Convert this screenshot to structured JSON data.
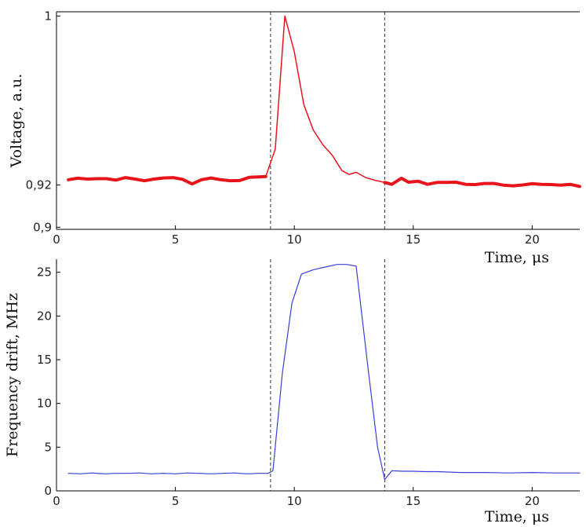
{
  "chart_data": [
    {
      "type": "line",
      "ylabel": "Voltage, a.u.",
      "xlabel": "Time, μs",
      "xlim": [
        0,
        22
      ],
      "ylim": [
        0.899,
        1.002
      ],
      "yticks": [
        0.9,
        0.92,
        1
      ],
      "ytick_labels": [
        "0,9",
        "0,92",
        "1"
      ],
      "xticks": [
        0,
        5,
        10,
        15,
        20
      ],
      "xtick_labels": [
        "0",
        "5",
        "10",
        "15",
        "20"
      ],
      "markers": [
        9.0,
        13.8
      ],
      "grid": false,
      "series": [
        {
          "color": "#e8141c",
          "segments": [
            {
              "x": [
                0.5,
                0.9,
                1.3,
                1.7,
                2.1,
                2.5,
                2.9,
                3.3,
                3.7,
                4.1,
                4.5,
                4.9,
                5.3,
                5.7,
                6.1,
                6.5,
                6.9,
                7.3,
                7.7,
                8.1,
                8.5,
                8.8
              ],
              "y": [
                0.9225,
                0.9232,
                0.9228,
                0.923,
                0.923,
                0.9223,
                0.9235,
                0.9228,
                0.922,
                0.9228,
                0.9233,
                0.9235,
                0.9227,
                0.9205,
                0.9225,
                0.9233,
                0.9225,
                0.922,
                0.9221,
                0.9236,
                0.9238,
                0.924
              ],
              "width": 4
            },
            {
              "x": [
                8.8,
                9.2,
                9.6,
                10.0,
                10.4,
                10.8,
                11.2,
                11.6,
                12.0,
                12.3,
                12.6,
                13.0,
                13.4,
                13.8
              ],
              "y": [
                0.924,
                0.937,
                1.0,
                0.983,
                0.958,
                0.946,
                0.939,
                0.934,
                0.9268,
                0.925,
                0.926,
                0.9235,
                0.9222,
                0.9212
              ],
              "width": 1.5
            },
            {
              "x": [
                13.8,
                14.1,
                14.5,
                14.8,
                15.2,
                15.6,
                16.0,
                16.4,
                16.8,
                17.2,
                17.6,
                18.0,
                18.4,
                18.8,
                19.2,
                19.6,
                20.0,
                20.4,
                20.8,
                21.2,
                21.6,
                22.0
              ],
              "y": [
                0.9212,
                0.9203,
                0.9232,
                0.9213,
                0.9218,
                0.9203,
                0.9212,
                0.9212,
                0.9213,
                0.9203,
                0.9202,
                0.9207,
                0.9207,
                0.9199,
                0.9196,
                0.92,
                0.9206,
                0.9203,
                0.9202,
                0.9199,
                0.9203,
                0.9193
              ],
              "width": 4
            }
          ]
        }
      ]
    },
    {
      "type": "line",
      "ylabel": "Frequency drift, MHz",
      "xlabel": "Time, μs",
      "xlim": [
        0,
        22
      ],
      "ylim": [
        0,
        26.5
      ],
      "yticks": [
        0,
        5,
        10,
        15,
        20,
        25
      ],
      "ytick_labels": [
        "0",
        "5",
        "10",
        "15",
        "20",
        "25"
      ],
      "xticks": [
        0,
        5,
        10,
        15,
        20
      ],
      "xtick_labels": [
        "0",
        "5",
        "10",
        "15",
        "20"
      ],
      "markers": [
        9.0,
        13.8
      ],
      "grid": false,
      "series": [
        {
          "color": "#3a3fd6",
          "segments": [
            {
              "x": [
                0.5,
                1.0,
                1.5,
                2.0,
                2.5,
                3.0,
                3.5,
                4.0,
                4.5,
                5.0,
                5.5,
                6.0,
                6.5,
                7.0,
                7.5,
                8.0,
                8.5,
                8.9,
                9.1,
                9.5,
                9.9,
                10.3,
                10.8,
                11.3,
                11.8,
                12.2,
                12.6,
                13.1,
                13.5,
                13.8,
                14.1,
                14.6,
                15.0,
                15.5,
                16.0,
                17.0,
                18.0,
                19.0,
                20.0,
                21.0,
                22.0
              ],
              "y": [
                2.0,
                1.95,
                2.05,
                1.95,
                2.0,
                2.0,
                2.05,
                1.95,
                2.0,
                1.95,
                2.05,
                2.0,
                1.95,
                2.0,
                2.05,
                1.95,
                2.0,
                2.0,
                2.3,
                13.5,
                21.5,
                24.8,
                25.3,
                25.6,
                25.9,
                25.9,
                25.7,
                14.0,
                5.0,
                1.3,
                2.3,
                2.25,
                2.25,
                2.2,
                2.2,
                2.1,
                2.1,
                2.05,
                2.1,
                2.05,
                2.05
              ],
              "width": 1.2
            }
          ]
        }
      ]
    }
  ]
}
